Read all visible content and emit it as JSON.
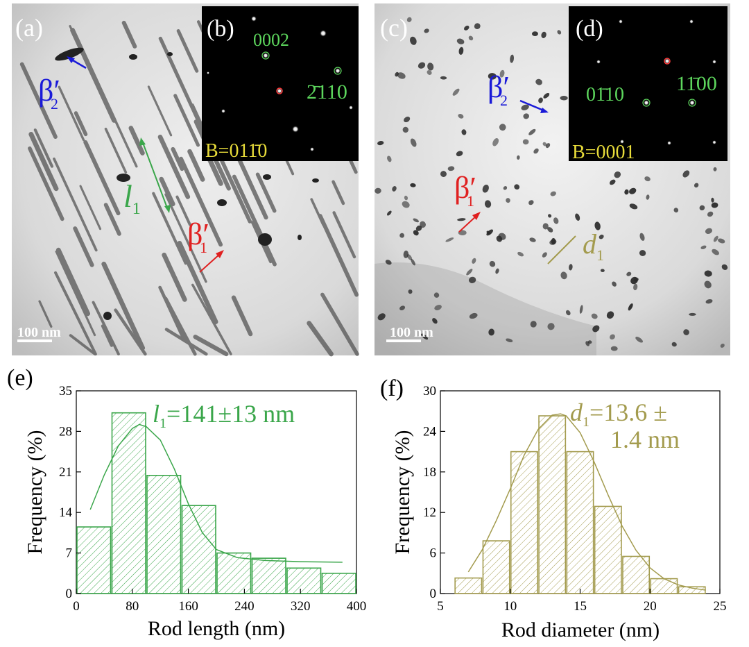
{
  "panels": {
    "a": {
      "label": "(a)",
      "scale_bar": "100 nm",
      "l1": "l",
      "l1_sub": "1",
      "beta2": "β′",
      "beta2_sub": "2",
      "beta1": "β′",
      "beta1_sub": "1"
    },
    "b": {
      "label": "(b)",
      "spot1": "0002",
      "spot2": "2̄110",
      "zone_axis": "B=011̄0"
    },
    "c": {
      "label": "(c)",
      "scale_bar": "100 nm",
      "beta2": "β′",
      "beta2_sub": "2",
      "beta1": "β′",
      "beta1_sub": "1",
      "d1": "d",
      "d1_sub": "1"
    },
    "d": {
      "label": "(d)",
      "spot1": "01̄10",
      "spot2": "11̄00",
      "zone_axis": "B=0001"
    },
    "e": {
      "label": "(e)",
      "annotation_var": "l",
      "annotation_sub": "1",
      "annotation_val": "=141±13 nm"
    },
    "f": {
      "label": "(f)",
      "annotation_var": "d",
      "annotation_sub": "1",
      "annotation_val": "=13.6 ±",
      "annotation_val2": "1.4 nm"
    }
  },
  "colors": {
    "green": "#3aa64a",
    "olive": "#a39b4e",
    "blue": "#1a1ad8",
    "red": "#e02020",
    "yellow": "#e8dc3a"
  },
  "chart_data": [
    {
      "type": "bar",
      "title": "",
      "xlabel": "Rod length (nm)",
      "ylabel": "Frequency (%)",
      "xlim": [
        0,
        400
      ],
      "ylim": [
        0,
        35
      ],
      "xticks": [
        0,
        80,
        160,
        240,
        320,
        400
      ],
      "yticks": [
        0,
        7,
        14,
        21,
        28,
        35
      ],
      "bin_edges": [
        0,
        50,
        100,
        150,
        200,
        250,
        300,
        350,
        400
      ],
      "values": [
        11.5,
        31.2,
        20.4,
        15.2,
        7.0,
        6.1,
        4.4,
        3.5
      ],
      "fit_curve": {
        "x": [
          20,
          40,
          60,
          80,
          90,
          100,
          120,
          140,
          160,
          180,
          200,
          230,
          270,
          320,
          380
        ],
        "y": [
          14.5,
          20.5,
          25.5,
          28.5,
          29.2,
          28.8,
          26.5,
          21.5,
          15.5,
          10.5,
          7.6,
          6.2,
          5.7,
          5.5,
          5.4
        ]
      },
      "color": "#3aa64a"
    },
    {
      "type": "bar",
      "title": "",
      "xlabel": "Rod diameter (nm)",
      "ylabel": "Frequency (%)",
      "xlim": [
        5,
        25
      ],
      "ylim": [
        0,
        30
      ],
      "xticks": [
        5,
        10,
        15,
        20,
        25
      ],
      "yticks": [
        0,
        6,
        12,
        18,
        24,
        30
      ],
      "bin_edges": [
        6,
        8,
        10,
        12,
        14,
        16,
        18,
        20,
        22,
        24
      ],
      "values": [
        2.3,
        7.8,
        21.0,
        26.3,
        21.0,
        12.9,
        5.5,
        2.2,
        1.0
      ],
      "fit_curve": {
        "x": [
          7,
          8,
          9,
          10,
          11,
          12,
          13,
          13.6,
          14,
          15,
          16,
          17,
          18,
          19,
          20,
          21,
          22,
          23,
          24
        ],
        "y": [
          3.2,
          6.5,
          10.8,
          15.5,
          20.5,
          24.3,
          26.4,
          26.6,
          26.3,
          23.8,
          19.5,
          14.6,
          10.0,
          6.4,
          3.8,
          2.2,
          1.3,
          0.8,
          0.5
        ]
      },
      "color": "#a39b4e"
    }
  ]
}
